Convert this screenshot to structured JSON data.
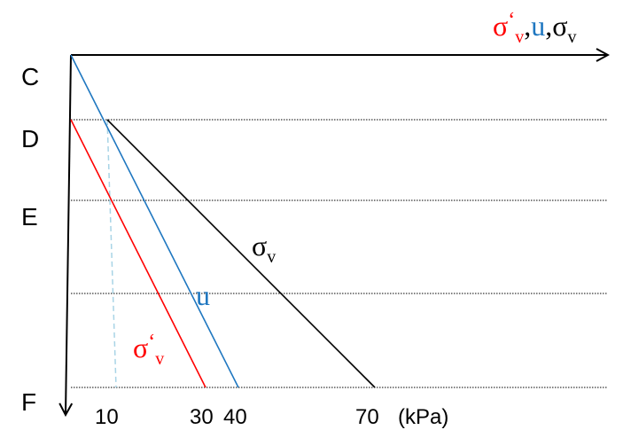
{
  "title": {
    "sigma_eff": "σ",
    "prime": "‘",
    "sub_v1": "v",
    "comma1": ",",
    "u": "u",
    "comma2": ",",
    "sigma": "σ",
    "sub_v2": "v"
  },
  "depth_labels": [
    "C",
    "D",
    "E",
    "F"
  ],
  "x_ticks": [
    "10",
    "30",
    "40",
    "70",
    "(kPa)"
  ],
  "curve_labels": {
    "sigma_v": {
      "sigma": "σ",
      "sub": "v"
    },
    "u": "u",
    "sigma_eff_v": {
      "sigma": "σ",
      "prime": "‘",
      "sub": "v"
    }
  },
  "colors": {
    "total_stress": "#000000",
    "pore_pressure": "#1f77c0",
    "effective_stress": "#ff0000",
    "dashed_guide": "#a8d4e6"
  },
  "chart_data": {
    "type": "line",
    "xlabel": "σ‘v, u, σv (kPa)",
    "ylabel": "",
    "y_categories": [
      "C",
      "D",
      "E",
      "F"
    ],
    "x_ticks": [
      10,
      30,
      40,
      70
    ],
    "series": [
      {
        "name": "σv",
        "points": [
          [
            10,
            "D"
          ],
          [
            70,
            "F"
          ]
        ]
      },
      {
        "name": "u",
        "points": [
          [
            0,
            "C"
          ],
          [
            40,
            "F"
          ]
        ]
      },
      {
        "name": "σ‘v",
        "points": [
          [
            0,
            "D"
          ],
          [
            30,
            "F"
          ]
        ]
      }
    ]
  }
}
